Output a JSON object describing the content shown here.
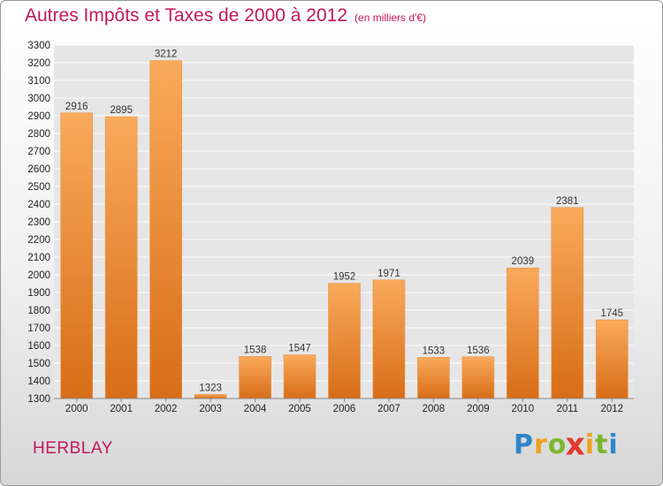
{
  "title": {
    "main": "Autres Impôts et Taxes de 2000 à 2012",
    "sub": "(en milliers d'€)"
  },
  "city": "HERBLAY",
  "brand": {
    "letters": [
      "P",
      "r",
      "o",
      "x",
      "i",
      "t",
      "i"
    ],
    "colors": [
      "#2f86c8",
      "#f0a020",
      "#7ab72e",
      "#e23a2e",
      "#f0a020",
      "#7ab72e",
      "#2f86c8"
    ]
  },
  "colors": {
    "title": "#c2185b",
    "bar_light": "#f9aa5b",
    "bar_dark": "#d86d17"
  },
  "chart_data": {
    "type": "bar",
    "title": "Autres Impôts et Taxes de 2000 à 2012",
    "subtitle": "(en milliers d'€)",
    "categories": [
      "2000",
      "2001",
      "2002",
      "2003",
      "2004",
      "2005",
      "2006",
      "2007",
      "2008",
      "2009",
      "2010",
      "2011",
      "2012"
    ],
    "values": [
      2916,
      2895,
      3212,
      1323,
      1538,
      1547,
      1952,
      1971,
      1533,
      1536,
      2039,
      2381,
      1745
    ],
    "ylim": [
      1300,
      3300
    ],
    "yticks": [
      1300,
      1400,
      1500,
      1600,
      1700,
      1800,
      1900,
      2000,
      2100,
      2200,
      2300,
      2400,
      2500,
      2600,
      2700,
      2800,
      2900,
      3000,
      3100,
      3200,
      3300
    ],
    "grid": true,
    "legend": "none"
  }
}
